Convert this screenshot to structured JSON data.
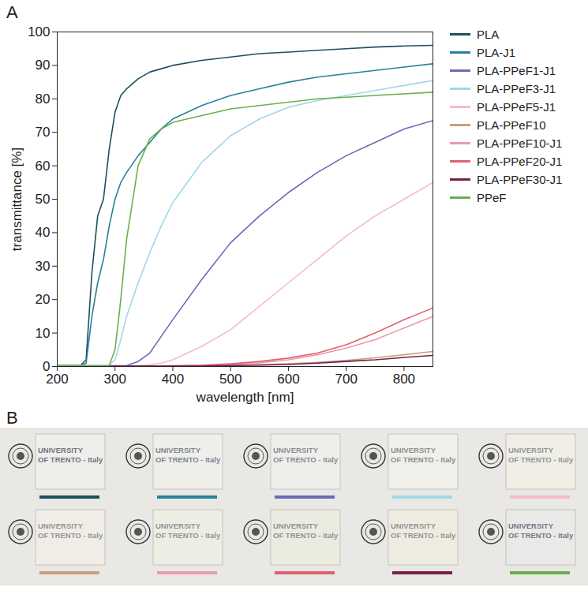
{
  "chart_data": {
    "type": "line",
    "panel": "A",
    "x_label": "wavelength [nm]",
    "y_label": "transmittance [%]",
    "x": [
      200,
      240,
      250,
      260,
      270,
      280,
      290,
      300,
      310,
      320,
      340,
      360,
      380,
      400,
      450,
      500,
      550,
      600,
      650,
      700,
      750,
      800,
      850
    ],
    "xlim": [
      200,
      850
    ],
    "xticks": [
      200,
      300,
      400,
      500,
      600,
      700,
      800
    ],
    "ylim": [
      0,
      100
    ],
    "yticks": [
      0,
      10,
      20,
      30,
      40,
      50,
      60,
      70,
      80,
      90,
      100
    ],
    "legend": "right",
    "series": [
      {
        "name": "PLA",
        "color": "#1d4f5e",
        "values": [
          0.3,
          0.3,
          2,
          28,
          45,
          50,
          65,
          76,
          81,
          83,
          86,
          88,
          89,
          90,
          91.5,
          92.5,
          93.5,
          94,
          94.5,
          95,
          95.5,
          95.8,
          96
        ]
      },
      {
        "name": "PLA-J1",
        "color": "#2a7f9e",
        "values": [
          0.3,
          0.3,
          1,
          15,
          25,
          32,
          42,
          50,
          55,
          58,
          63,
          67,
          71,
          74,
          78,
          81,
          83,
          85,
          86.5,
          87.5,
          88.5,
          89.5,
          90.5
        ]
      },
      {
        "name": "PLA-PPeF1-J1",
        "color": "#6a6ab5",
        "values": [
          0.2,
          0.2,
          0.2,
          0.2,
          0.2,
          0.2,
          0.2,
          0.2,
          0.2,
          0.3,
          1.5,
          4,
          9,
          14,
          26,
          37,
          45,
          52,
          58,
          63,
          67,
          71,
          73.5
        ]
      },
      {
        "name": "PLA-PPeF3-J1",
        "color": "#9fd8ea",
        "values": [
          0.2,
          0.2,
          0.2,
          0.2,
          0.2,
          0.2,
          0.5,
          2,
          8,
          15,
          25,
          34,
          42,
          49,
          61,
          69,
          74,
          77.5,
          79.5,
          81,
          82.5,
          84,
          85.5
        ]
      },
      {
        "name": "PLA-PPeF5-J1",
        "color": "#f4bcc8",
        "values": [
          0.2,
          0.2,
          0.2,
          0.2,
          0.2,
          0.2,
          0.2,
          0.2,
          0.2,
          0.2,
          0.3,
          0.5,
          1,
          2,
          6,
          11,
          18,
          25,
          32,
          39,
          45,
          50,
          55
        ]
      },
      {
        "name": "PLA-PPeF10",
        "color": "#c9a07f",
        "values": [
          0.1,
          0.1,
          0.1,
          0.1,
          0.1,
          0.1,
          0.1,
          0.1,
          0.1,
          0.1,
          0.1,
          0.1,
          0.1,
          0.1,
          0.1,
          0.3,
          0.5,
          0.8,
          1.2,
          1.8,
          2.6,
          3.5,
          4.5
        ]
      },
      {
        "name": "PLA-PPeF10-J1",
        "color": "#e89aae",
        "values": [
          0.1,
          0.1,
          0.1,
          0.1,
          0.1,
          0.1,
          0.1,
          0.1,
          0.1,
          0.1,
          0.1,
          0.1,
          0.1,
          0.1,
          0.3,
          0.6,
          1.1,
          2,
          3.5,
          5.5,
          8,
          11.5,
          15
        ]
      },
      {
        "name": "PLA-PPeF20-J1",
        "color": "#e0606f",
        "values": [
          0.1,
          0.1,
          0.1,
          0.1,
          0.1,
          0.1,
          0.1,
          0.1,
          0.1,
          0.1,
          0.1,
          0.1,
          0.1,
          0.2,
          0.4,
          0.8,
          1.5,
          2.5,
          4,
          6.5,
          10,
          14,
          17.5
        ]
      },
      {
        "name": "PLA-PPeF30-J1",
        "color": "#7a1f4a",
        "values": [
          0.1,
          0.1,
          0.1,
          0.1,
          0.1,
          0.1,
          0.1,
          0.1,
          0.1,
          0.1,
          0.1,
          0.1,
          0.1,
          0.1,
          0.1,
          0.3,
          0.4,
          0.6,
          1,
          1.5,
          2,
          2.7,
          3.3
        ]
      },
      {
        "name": "PPeF",
        "color": "#6ab04c",
        "values": [
          0.2,
          0.2,
          0.2,
          0.2,
          0.2,
          0.2,
          0.3,
          5,
          20,
          38,
          60,
          68,
          71,
          73,
          75,
          77,
          78,
          79,
          80,
          80.5,
          81,
          81.5,
          82
        ]
      }
    ]
  },
  "photo": {
    "panel": "B",
    "samples": [
      {
        "label_lines": [
          "UNIVERSITY",
          "OF TRENTO - Italy"
        ],
        "color": "#1d4f5e"
      },
      {
        "label_lines": [
          "UNIVERSITY",
          "OF TRENTO - Italy"
        ],
        "color": "#2a7f9e"
      },
      {
        "label_lines": [
          "UNIVERSITY",
          "OF TRENTO - Italy"
        ],
        "color": "#6a6ab5"
      },
      {
        "label_lines": [
          "UNIVERSITY",
          "OF TRENTO - Italy"
        ],
        "color": "#9fd8ea"
      },
      {
        "label_lines": [
          "UNIVERSITY",
          "OF TRENTO - Italy"
        ],
        "color": "#f4bcc8"
      },
      {
        "label_lines": [
          "UNIVERSITY",
          "OF TRENTO - Italy"
        ],
        "color": "#c9a07f"
      },
      {
        "label_lines": [
          "UNIVERSITY",
          "OF TRENTO - Italy"
        ],
        "color": "#e89aae"
      },
      {
        "label_lines": [
          "UNIVERSITY",
          "OF TRENTO - Italy"
        ],
        "color": "#e0606f"
      },
      {
        "label_lines": [
          "UNIVERSITY",
          "OF TRENTO - Italy"
        ],
        "color": "#7a1f4a"
      },
      {
        "label_lines": [
          "UNIVERSITY",
          "OF TRENTO - Italy"
        ],
        "color": "#6ab04c"
      }
    ]
  }
}
